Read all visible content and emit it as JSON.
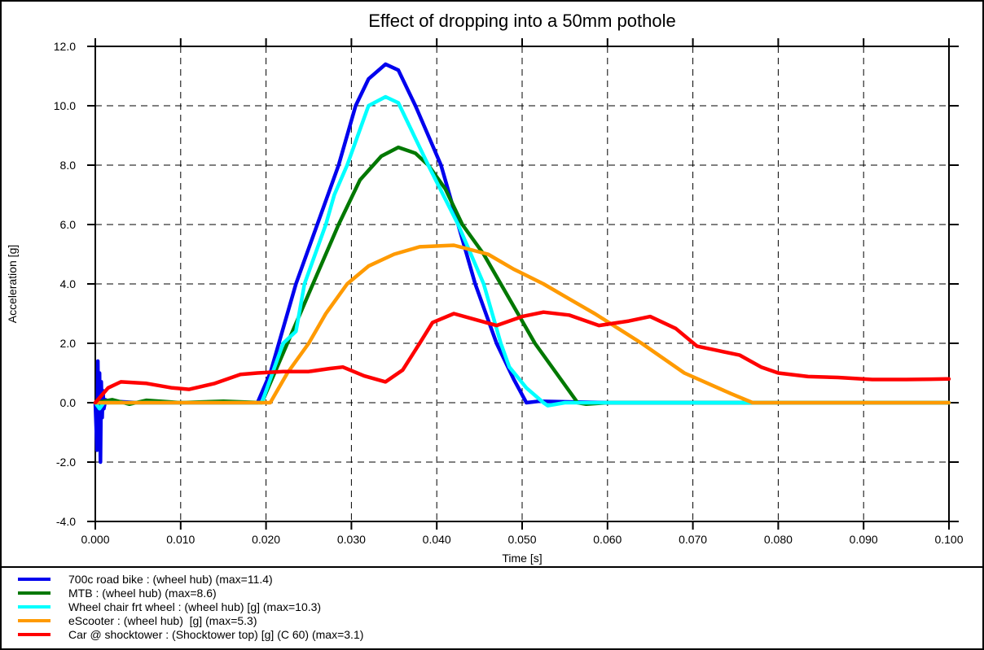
{
  "chart_data": {
    "type": "line",
    "title": "Effect of dropping into a 50mm pothole",
    "xlabel": "Time [s]",
    "ylabel": "Acceleration [g]",
    "xlim": [
      0.0,
      0.1
    ],
    "ylim": [
      -4.0,
      12.0
    ],
    "xticks": [
      0.0,
      0.01,
      0.02,
      0.03,
      0.04,
      0.05,
      0.06,
      0.07,
      0.08,
      0.09,
      0.1
    ],
    "xtick_labels": [
      "0.000",
      "0.010",
      "0.020",
      "0.030",
      "0.040",
      "0.050",
      "0.060",
      "0.070",
      "0.080",
      "0.090",
      "0.100"
    ],
    "yticks": [
      -4.0,
      -2.0,
      0.0,
      2.0,
      4.0,
      6.0,
      8.0,
      10.0,
      12.0
    ],
    "ytick_labels": [
      "-4.0",
      "-2.0",
      "0.0",
      "2.0",
      "4.0",
      "6.0",
      "8.0",
      "10.0",
      "12.0"
    ],
    "grid": true,
    "legend_position": "bottom",
    "series": [
      {
        "name": "700c road bike : (wheel hub) (max=11.4)",
        "color": "#0000ee",
        "x": [
          0.0,
          0.0002,
          0.0003,
          0.0004,
          0.0005,
          0.0006,
          0.0007,
          0.0008,
          0.0009,
          0.001,
          0.0012,
          0.0015,
          0.002,
          0.005,
          0.01,
          0.015,
          0.019,
          0.0205,
          0.0215,
          0.0235,
          0.026,
          0.0285,
          0.0305,
          0.032,
          0.034,
          0.0355,
          0.0375,
          0.0405,
          0.0425,
          0.0445,
          0.047,
          0.049,
          0.0505,
          0.052,
          0.06,
          0.07,
          0.08,
          0.09,
          0.1
        ],
        "y": [
          0.0,
          -1.6,
          1.4,
          -1.2,
          1.0,
          -2.0,
          0.7,
          -0.5,
          0.4,
          -0.2,
          0.1,
          0.0,
          0.05,
          0.0,
          0.0,
          0.0,
          0.0,
          1.0,
          2.0,
          4.0,
          6.0,
          8.0,
          10.0,
          10.9,
          11.4,
          11.2,
          10.0,
          8.0,
          6.0,
          4.0,
          2.0,
          0.8,
          0.0,
          0.05,
          0.0,
          0.0,
          0.0,
          0.0,
          0.0
        ]
      },
      {
        "name": "MTB : (wheel hub) (max=8.6)",
        "color": "#007800",
        "x": [
          0.0,
          0.002,
          0.004,
          0.006,
          0.01,
          0.015,
          0.0195,
          0.0225,
          0.0255,
          0.0285,
          0.031,
          0.0335,
          0.0355,
          0.0375,
          0.039,
          0.041,
          0.043,
          0.0455,
          0.0475,
          0.0495,
          0.0515,
          0.054,
          0.0565,
          0.0575,
          0.06,
          0.07,
          0.08,
          0.09,
          0.1
        ],
        "y": [
          0.0,
          0.1,
          -0.05,
          0.08,
          0.0,
          0.05,
          0.0,
          2.0,
          4.0,
          6.0,
          7.5,
          8.3,
          8.6,
          8.4,
          8.0,
          7.2,
          6.0,
          5.0,
          4.0,
          3.0,
          2.0,
          1.0,
          0.0,
          -0.05,
          0.0,
          0.0,
          0.0,
          0.0,
          0.0
        ]
      },
      {
        "name": "Wheel chair frt wheel : (wheel hub) [g] (max=10.3)",
        "color": "#00ffff",
        "x": [
          0.0,
          0.0005,
          0.001,
          0.005,
          0.01,
          0.015,
          0.0195,
          0.022,
          0.0235,
          0.0245,
          0.027,
          0.028,
          0.0295,
          0.032,
          0.034,
          0.0355,
          0.039,
          0.0425,
          0.0455,
          0.0475,
          0.0485,
          0.0505,
          0.0525,
          0.053,
          0.055,
          0.06,
          0.07,
          0.08,
          0.09,
          0.1
        ],
        "y": [
          0.0,
          -0.2,
          0.0,
          0.0,
          0.0,
          0.0,
          0.0,
          2.0,
          2.4,
          4.0,
          6.0,
          7.0,
          8.0,
          10.0,
          10.3,
          10.1,
          8.0,
          6.0,
          4.0,
          2.0,
          1.2,
          0.5,
          0.0,
          -0.1,
          0.0,
          0.0,
          0.0,
          0.0,
          0.0,
          0.0
        ]
      },
      {
        "name": "eScooter : (wheel hub)  [g] (max=5.3)",
        "color": "#ff9a00",
        "x": [
          0.0,
          0.005,
          0.01,
          0.015,
          0.0205,
          0.0225,
          0.025,
          0.027,
          0.0295,
          0.032,
          0.035,
          0.038,
          0.042,
          0.046,
          0.049,
          0.0525,
          0.0555,
          0.0585,
          0.064,
          0.069,
          0.0745,
          0.077,
          0.08,
          0.09,
          0.1
        ],
        "y": [
          0.0,
          0.0,
          0.0,
          0.0,
          0.0,
          1.0,
          2.0,
          3.0,
          4.0,
          4.6,
          5.0,
          5.25,
          5.3,
          5.0,
          4.5,
          4.0,
          3.5,
          3.0,
          2.0,
          1.0,
          0.3,
          0.0,
          0.0,
          0.0,
          0.0
        ]
      },
      {
        "name": "Car @ shocktower : (Shocktower top) [g] (C 60) (max=3.1)",
        "color": "#ff0000",
        "x": [
          0.0,
          0.0015,
          0.003,
          0.006,
          0.009,
          0.011,
          0.014,
          0.017,
          0.019,
          0.022,
          0.025,
          0.0275,
          0.029,
          0.0315,
          0.034,
          0.036,
          0.038,
          0.0395,
          0.042,
          0.0445,
          0.047,
          0.05,
          0.0525,
          0.0555,
          0.059,
          0.0625,
          0.065,
          0.068,
          0.0705,
          0.073,
          0.0755,
          0.078,
          0.08,
          0.0835,
          0.087,
          0.091,
          0.095,
          0.1
        ],
        "y": [
          0.0,
          0.5,
          0.7,
          0.65,
          0.5,
          0.45,
          0.65,
          0.95,
          1.0,
          1.05,
          1.05,
          1.15,
          1.2,
          0.9,
          0.7,
          1.1,
          2.0,
          2.7,
          3.0,
          2.8,
          2.6,
          2.9,
          3.05,
          2.95,
          2.6,
          2.75,
          2.9,
          2.5,
          1.9,
          1.75,
          1.6,
          1.2,
          1.0,
          0.88,
          0.85,
          0.78,
          0.78,
          0.8
        ]
      }
    ]
  }
}
